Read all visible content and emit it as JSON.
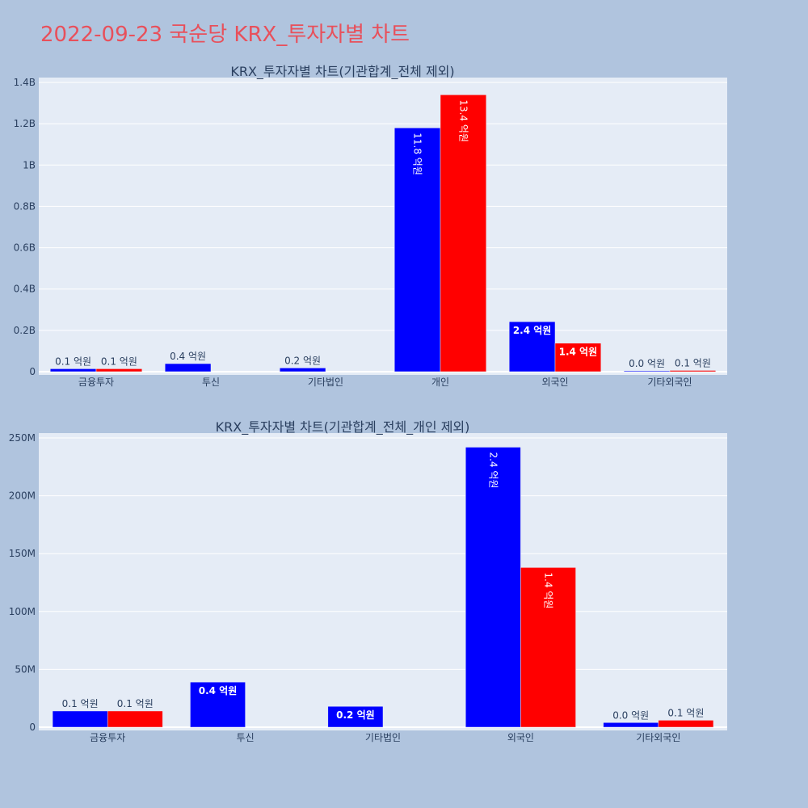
{
  "title": "2022-09-23 국순당 KRX_투자자별 차트",
  "colors": {
    "buy": "#0000ff",
    "sell": "#ff0000",
    "plot_bg": "#e5ecf6",
    "page_bg": "#b0c4de",
    "title": "#e8505b"
  },
  "chart_data": [
    {
      "type": "bar",
      "title": "KRX_투자자별 차트(기관합계_전체 제외)",
      "categories": [
        "금융투자",
        "투신",
        "기타법인",
        "개인",
        "외국인",
        "기타외국인"
      ],
      "ylim": [
        0,
        1400000000
      ],
      "yticks": [
        0,
        200000000,
        400000000,
        600000000,
        800000000,
        1000000000,
        1200000000,
        1400000000
      ],
      "ytick_labels": [
        "0",
        "0.2B",
        "0.4B",
        "0.6B",
        "0.8B",
        "1B",
        "1.2B",
        "1.4B"
      ],
      "grid": true,
      "series": [
        {
          "color": "#0000ff",
          "values": [
            14000000,
            39000000,
            null,
            1180000000,
            242000000,
            4000000
          ],
          "labels": [
            "0.1 억원",
            "0.4 억원",
            "0.2 억원",
            "11.8 억원",
            "2.4 억원",
            "0.0 억원"
          ]
        },
        {
          "color": "#ff0000",
          "values": [
            14000000,
            null,
            null,
            1340000000,
            138000000,
            6000000
          ],
          "labels": [
            "0.1 억원",
            "",
            "",
            "13.4 억원",
            "1.4 억원",
            "0.1 억원"
          ]
        }
      ],
      "values_note_fix": [
        14000000,
        39000000,
        18000000
      ]
    },
    {
      "type": "bar",
      "title": "KRX_투자자별 차트(기관합계_전체_개인 제외)",
      "categories": [
        "금융투자",
        "투신",
        "기타법인",
        "외국인",
        "기타외국인"
      ],
      "ylim": [
        0,
        250000000
      ],
      "yticks": [
        0,
        50000000,
        100000000,
        150000000,
        200000000,
        250000000
      ],
      "ytick_labels": [
        "0",
        "50M",
        "100M",
        "150M",
        "200M",
        "250M"
      ],
      "grid": true,
      "series": [
        {
          "color": "#0000ff",
          "values": [
            14000000,
            39000000,
            18000000,
            242000000,
            4000000
          ],
          "labels": [
            "0.1 억원",
            "0.4 억원",
            "0.2 억원",
            "2.4 억원",
            "0.0 억원"
          ]
        },
        {
          "color": "#ff0000",
          "values": [
            14000000,
            null,
            null,
            138000000,
            6000000
          ],
          "labels": [
            "0.1 억원",
            "",
            "",
            "1.4 억원",
            "0.1 억원"
          ]
        }
      ]
    }
  ]
}
